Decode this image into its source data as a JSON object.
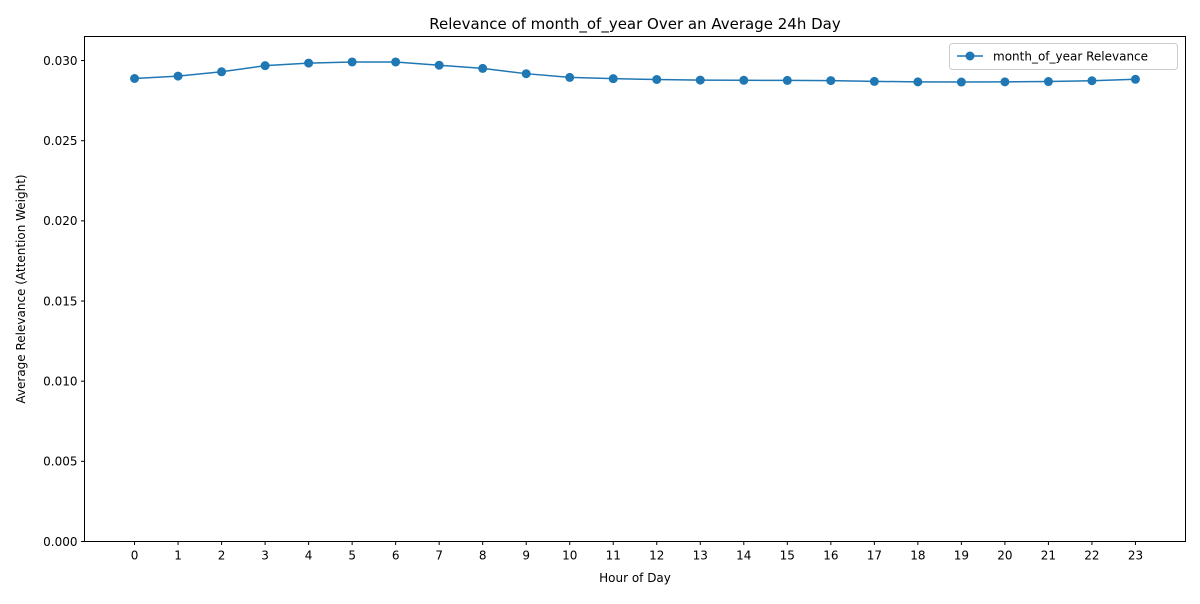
{
  "chart_data": {
    "type": "line",
    "title": "Relevance of month_of_year Over an Average 24h Day",
    "xlabel": "Hour of Day",
    "ylabel": "Average Relevance (Attention Weight)",
    "x": [
      0,
      1,
      2,
      3,
      4,
      5,
      6,
      7,
      8,
      9,
      10,
      11,
      12,
      13,
      14,
      15,
      16,
      17,
      18,
      19,
      20,
      21,
      22,
      23
    ],
    "xticks": [
      "0",
      "1",
      "2",
      "3",
      "4",
      "5",
      "6",
      "7",
      "8",
      "9",
      "10",
      "11",
      "12",
      "13",
      "14",
      "15",
      "16",
      "17",
      "18",
      "19",
      "20",
      "21",
      "22",
      "23"
    ],
    "yticks": [
      "0.000",
      "0.005",
      "0.010",
      "0.015",
      "0.020",
      "0.025",
      "0.030"
    ],
    "ytick_values": [
      0.0,
      0.005,
      0.01,
      0.015,
      0.02,
      0.025,
      0.03
    ],
    "xlim": [
      -1.15,
      24.15
    ],
    "ylim": [
      0,
      0.0315
    ],
    "grid": false,
    "legend_position": "top-right",
    "series": [
      {
        "name": "month_of_year Relevance",
        "color": "#1f77b4",
        "marker": "circle",
        "values": [
          0.02888,
          0.02903,
          0.0293,
          0.02968,
          0.02984,
          0.02991,
          0.02991,
          0.02971,
          0.02951,
          0.02918,
          0.02895,
          0.02887,
          0.02882,
          0.02878,
          0.02877,
          0.02876,
          0.02875,
          0.0287,
          0.02867,
          0.02866,
          0.02867,
          0.02869,
          0.02874,
          0.02883
        ]
      }
    ]
  }
}
